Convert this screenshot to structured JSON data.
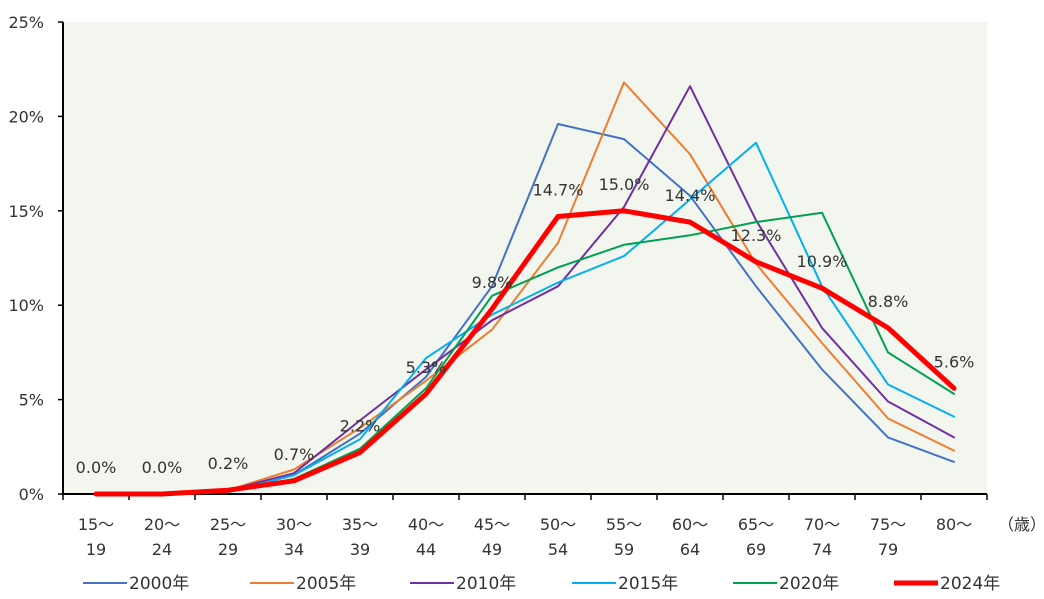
{
  "chart_data": {
    "type": "line",
    "categories": [
      [
        "15～",
        "19"
      ],
      [
        "20～",
        "24"
      ],
      [
        "25～",
        "29"
      ],
      [
        "30～",
        "34"
      ],
      [
        "35～",
        "39"
      ],
      [
        "40～",
        "44"
      ],
      [
        "45～",
        "49"
      ],
      [
        "50～",
        "54"
      ],
      [
        "55～",
        "59"
      ],
      [
        "60～",
        "64"
      ],
      [
        "65～",
        "69"
      ],
      [
        "70～",
        "74"
      ],
      [
        "75～",
        "79"
      ],
      [
        "80～",
        ""
      ]
    ],
    "x_unit": "（歳）",
    "y_ticks": [
      "0%",
      "5%",
      "10%",
      "15%",
      "20%",
      "25%"
    ],
    "ylim": [
      0,
      25
    ],
    "grid": false,
    "legend_position": "bottom",
    "plot_background": "#f3f6ee",
    "series": [
      {
        "name": "2000年",
        "color": "#4472c4",
        "width": 2,
        "values": [
          0,
          0,
          0.1,
          1.0,
          3.2,
          6.2,
          11.0,
          19.6,
          18.8,
          15.8,
          11.0,
          6.6,
          3.0,
          1.7
        ]
      },
      {
        "name": "2005年",
        "color": "#ed7d31",
        "width": 2,
        "values": [
          0,
          0,
          0.2,
          1.3,
          3.5,
          6.0,
          8.7,
          13.3,
          21.8,
          18.0,
          12.2,
          8.0,
          4.0,
          2.3
        ]
      },
      {
        "name": "2010年",
        "color": "#7030a0",
        "width": 2,
        "values": [
          0,
          0,
          0.2,
          1.1,
          3.9,
          6.6,
          9.2,
          11.0,
          15.2,
          21.6,
          14.5,
          8.8,
          4.9,
          3.0
        ]
      },
      {
        "name": "2015年",
        "color": "#00b0f0",
        "width": 2,
        "values": [
          0,
          0,
          0.1,
          1.0,
          2.9,
          7.2,
          9.5,
          11.2,
          12.6,
          15.6,
          18.6,
          11.0,
          5.8,
          4.1
        ]
      },
      {
        "name": "2020年",
        "color": "#00a050",
        "width": 2,
        "values": [
          0,
          0,
          0.1,
          0.8,
          2.4,
          5.6,
          10.5,
          12.0,
          13.2,
          13.7,
          14.4,
          14.9,
          7.5,
          5.3
        ]
      },
      {
        "name": "2024年",
        "color": "#ff0000",
        "width": 5,
        "values": [
          0.0,
          0.0,
          0.2,
          0.7,
          2.2,
          5.3,
          9.8,
          14.7,
          15.0,
          14.4,
          12.3,
          10.9,
          8.8,
          5.6
        ],
        "labels": [
          "0.0%",
          "0.0%",
          "0.2%",
          "0.7%",
          "2.2%",
          "5.3%",
          "9.8%",
          "14.7%",
          "15.0%",
          "14.4%",
          "12.3%",
          "10.9%",
          "8.8%",
          "5.6%"
        ]
      }
    ]
  }
}
